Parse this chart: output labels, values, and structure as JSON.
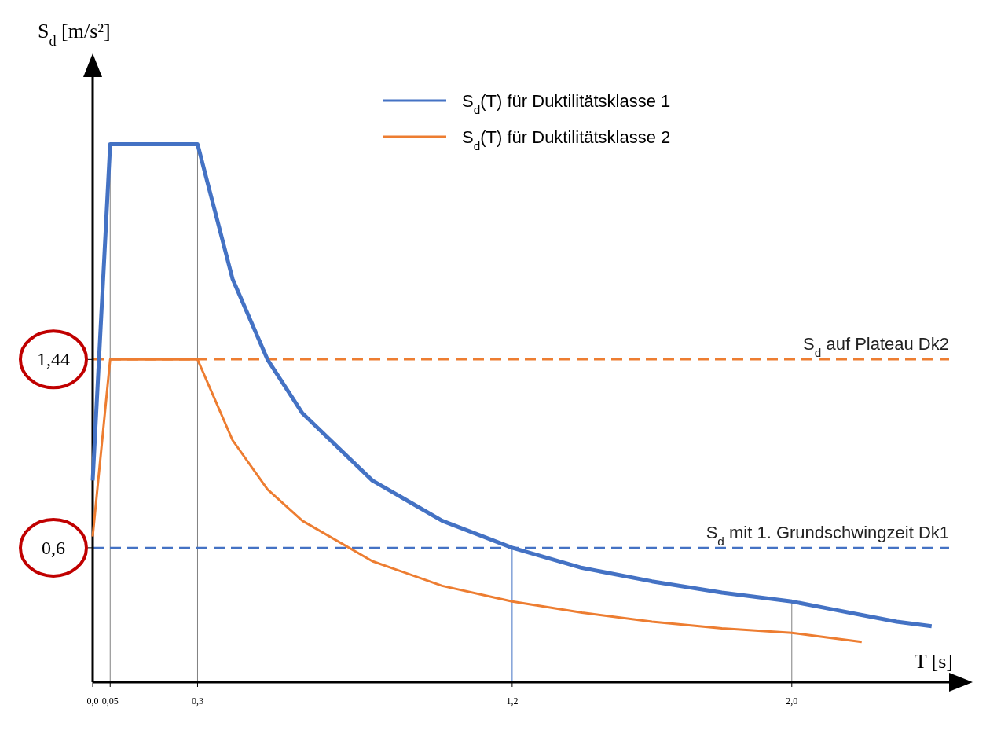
{
  "chart_data": {
    "type": "line",
    "xlabel": "T [s]",
    "ylabel": "S$_{d}$ [m/s²]",
    "xlim": [
      0,
      2.45
    ],
    "ylim": [
      0,
      2.7
    ],
    "xticks": [
      {
        "value": 0,
        "label": "0,0"
      },
      {
        "value": 0.05,
        "label": "0,05"
      },
      {
        "value": 0.3,
        "label": "0,3"
      },
      {
        "value": 1.2,
        "label": "1,2"
      },
      {
        "value": 2.0,
        "label": "2,0"
      }
    ],
    "yticks": [
      {
        "value": 0.6,
        "label": "0,6"
      },
      {
        "value": 1.44,
        "label": "1,44"
      }
    ],
    "grid": false,
    "legend": "top",
    "marker": "none",
    "line_style": "solid",
    "series": [
      {
        "name": "S$_{d}$(T) für Duktilitätsklasse 1",
        "color": "#4472c4",
        "x": [
          0,
          0.05,
          0.3,
          0.4,
          0.5,
          0.6,
          0.8,
          1.0,
          1.2,
          1.4,
          1.6,
          1.8,
          2.0,
          2.1,
          2.2,
          2.3,
          2.4
        ],
        "values": [
          0.9,
          2.4,
          2.4,
          1.8,
          1.44,
          1.2,
          0.9,
          0.72,
          0.6,
          0.51,
          0.45,
          0.4,
          0.36,
          0.33,
          0.3,
          0.27,
          0.25
        ]
      },
      {
        "name": "S$_{d}$(T) für Duktilitätsklasse 2",
        "color": "#ed7d31",
        "x": [
          0,
          0.05,
          0.3,
          0.4,
          0.5,
          0.6,
          0.8,
          1.0,
          1.2,
          1.4,
          1.6,
          1.8,
          2.0,
          2.1,
          2.2
        ],
        "values": [
          0.65,
          1.44,
          1.44,
          1.08,
          0.86,
          0.72,
          0.54,
          0.43,
          0.36,
          0.31,
          0.27,
          0.24,
          0.22,
          0.2,
          0.18
        ]
      }
    ],
    "ref_lines": [
      {
        "axis": "y",
        "value": 1.44,
        "label": "S$_{d}$ auf Plateau Dk2",
        "color": "#ed7d31",
        "line_style": "dashed"
      },
      {
        "axis": "y",
        "value": 0.6,
        "label": "S$_{d}$ mit 1. Grundschwingzeit Dk1",
        "color": "#4472c4",
        "line_style": "dashed"
      },
      {
        "axis": "x",
        "value": 0.05,
        "color": "#808080",
        "line_style": "solid"
      },
      {
        "axis": "x",
        "value": 0.3,
        "color": "#808080",
        "line_style": "solid"
      },
      {
        "axis": "x",
        "value": 1.2,
        "color": "#4472c4",
        "line_style": "solid"
      },
      {
        "axis": "x",
        "value": 2.0,
        "color": "#808080",
        "line_style": "solid"
      }
    ]
  }
}
